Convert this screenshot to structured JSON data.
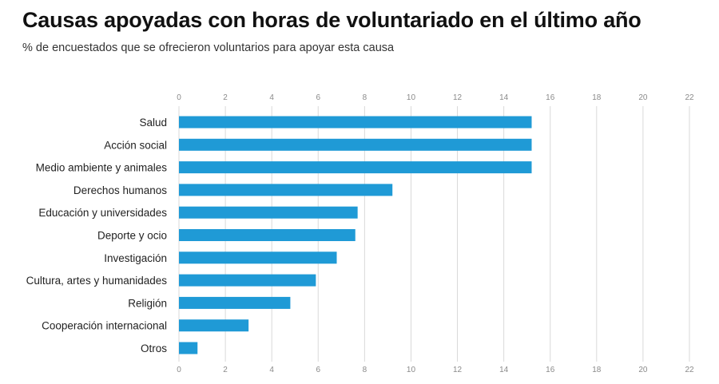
{
  "chart_data": {
    "type": "bar",
    "orientation": "horizontal",
    "title": "Causas apoyadas con horas de voluntariado en el último año",
    "subtitle": "% de encuestados que se ofrecieron voluntarios para apoyar esta causa",
    "categories": [
      "Salud",
      "Acción social",
      "Medio ambiente y animales",
      "Derechos humanos",
      "Educación y universidades",
      "Deporte y ocio",
      "Investigación",
      "Cultura, artes y humanidades",
      "Religión",
      "Cooperación internacional",
      "Otros"
    ],
    "values": [
      15.2,
      15.2,
      15.2,
      9.2,
      7.7,
      7.6,
      6.8,
      5.9,
      4.8,
      3.0,
      0.8
    ],
    "xticks": [
      0,
      2,
      4,
      6,
      8,
      10,
      12,
      14,
      16,
      18,
      20,
      22
    ],
    "xlim": [
      0,
      22
    ],
    "xlabel": "",
    "ylabel": "",
    "grid": true,
    "tick_labels_position": "top-and-bottom",
    "bar_color": "#1f9ad6",
    "grid_color": "#d9d9d9",
    "tick_color": "#8a8a8a"
  }
}
